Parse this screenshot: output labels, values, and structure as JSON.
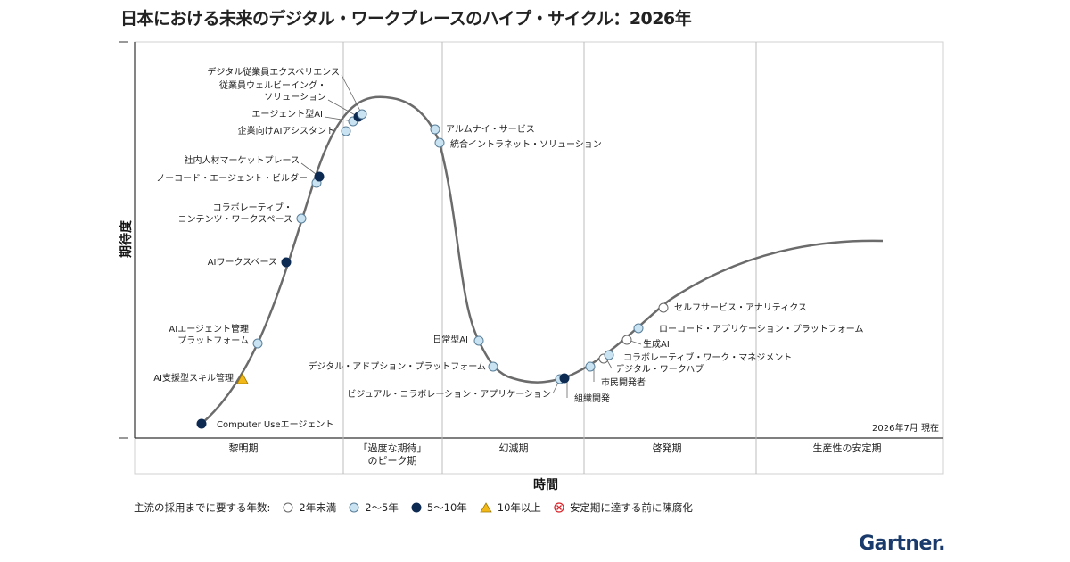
{
  "chart_data": {
    "type": "hype-cycle",
    "title": "日本における未来のデジタル・ワークプレースのハイプ・サイクル：2026年",
    "xlabel": "時間",
    "ylabel": "期待度",
    "as_of": "2026年7月 現在",
    "phases": [
      {
        "label": "黎明期"
      },
      {
        "label": "「過度な期待」のピーク期"
      },
      {
        "label": "幻滅期"
      },
      {
        "label": "啓発期"
      },
      {
        "label": "生産性の安定期"
      }
    ],
    "legend": {
      "title": "主流の採用までに要する年数:",
      "items": [
        {
          "key": "lt2",
          "label": "2年未満",
          "color": "#ffffff"
        },
        {
          "key": "2to5",
          "label": "2〜5年",
          "color": "#c9e3f2"
        },
        {
          "key": "5to10",
          "label": "5〜10年",
          "color": "#0d2a52"
        },
        {
          "key": "gt10",
          "label": "10年以上",
          "color": "#f2b818"
        },
        {
          "key": "obsolete",
          "label": "安定期に達する前に陳腐化",
          "color": "#d9262c"
        }
      ]
    },
    "points": [
      {
        "name": "Computer Useエージェント",
        "category": "5to10"
      },
      {
        "name": "AI支援型スキル管理",
        "category": "gt10"
      },
      {
        "name": "AIエージェント管理プラットフォーム",
        "category": "2to5"
      },
      {
        "name": "AIワークスペース",
        "category": "5to10"
      },
      {
        "name": "コラボレーティブ・コンテンツ・ワークスペース",
        "category": "2to5"
      },
      {
        "name": "ノーコード・エージェント・ビルダー",
        "category": "2to5"
      },
      {
        "name": "社内人材マーケットプレース",
        "category": "5to10"
      },
      {
        "name": "企業向けAIアシスタント",
        "category": "2to5"
      },
      {
        "name": "エージェント型AI",
        "category": "2to5"
      },
      {
        "name": "従業員ウェルビーイング・ソリューション",
        "category": "5to10"
      },
      {
        "name": "デジタル従業員エクスペリエンス",
        "category": "2to5"
      },
      {
        "name": "アルムナイ・サービス",
        "category": "2to5"
      },
      {
        "name": "統合イントラネット・ソリューション",
        "category": "2to5"
      },
      {
        "name": "日常型AI",
        "category": "2to5"
      },
      {
        "name": "デジタル・アドプション・プラットフォーム",
        "category": "2to5"
      },
      {
        "name": "ビジュアル・コラボレーション・アプリケーション",
        "category": "2to5"
      },
      {
        "name": "組織開発",
        "category": "5to10"
      },
      {
        "name": "市民開発者",
        "category": "2to5"
      },
      {
        "name": "デジタル・ワークハブ",
        "category": "lt2"
      },
      {
        "name": "コラボレーティブ・ワーク・マネジメント",
        "category": "2to5"
      },
      {
        "name": "生成AI",
        "category": "lt2"
      },
      {
        "name": "ローコード・アプリケーション・プラットフォーム",
        "category": "2to5"
      },
      {
        "name": "セルフサービス・アナリティクス",
        "category": "lt2"
      }
    ]
  },
  "brand": {
    "logo_text": "Gartner."
  }
}
